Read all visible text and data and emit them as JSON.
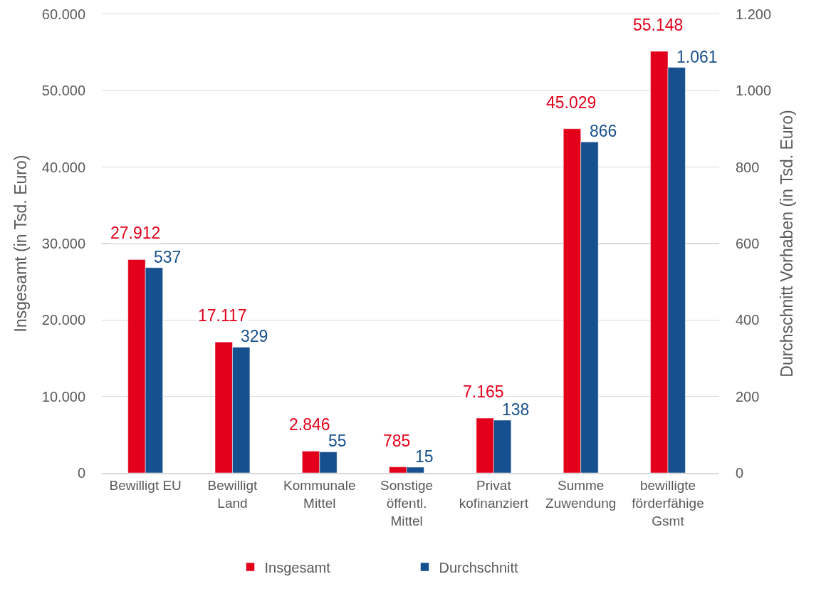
{
  "chart_data": {
    "type": "bar",
    "categories": [
      "Bewilligt EU",
      "Bewilligt Land",
      "Kommunale Mittel",
      "Sonstige öffentl. Mittel",
      "Privat kofinanziert",
      "Summe Zuwendung",
      "bewilligte förderfähige Gsmt"
    ],
    "series": [
      {
        "name": "Insgesamt",
        "color": "#e2001a",
        "values": [
          27912,
          17117,
          2846,
          785,
          7165,
          45029,
          55148
        ],
        "value_labels": [
          "27.912",
          "17.117",
          "2.846",
          "785",
          "7.165",
          "45.029",
          "55.148"
        ]
      },
      {
        "name": "Durchschnitt",
        "color": "#17508e",
        "axis": "y2",
        "values": [
          537,
          329,
          55,
          15,
          138,
          866,
          1061
        ],
        "value_labels": [
          "537",
          "329",
          "55",
          "15",
          "138",
          "866",
          "1.061"
        ]
      }
    ],
    "ylabel": "Insgesamt (in Tsd. Euro)",
    "y2label": "Durchschnitt Vorhaben (in Tsd. Euro)",
    "ylim": [
      0,
      60000
    ],
    "yticks": [
      0,
      {
        "value": 10000,
        "label": "10.000"
      },
      {
        "value": 20000,
        "label": "20.000"
      },
      {
        "value": 30000,
        "label": "30.000"
      },
      {
        "value": 40000,
        "label": "40.000"
      },
      {
        "value": 50000,
        "label": "50.000"
      },
      {
        "value": 60000,
        "label": "60.000"
      }
    ],
    "y2lim": [
      0,
      1200
    ],
    "y2ticks": [
      0,
      200,
      400,
      600,
      800,
      {
        "value": 1000,
        "label": "1.000"
      },
      {
        "value": 1200,
        "label": "1.200"
      }
    ],
    "grid": "y",
    "legend": "bottom"
  }
}
